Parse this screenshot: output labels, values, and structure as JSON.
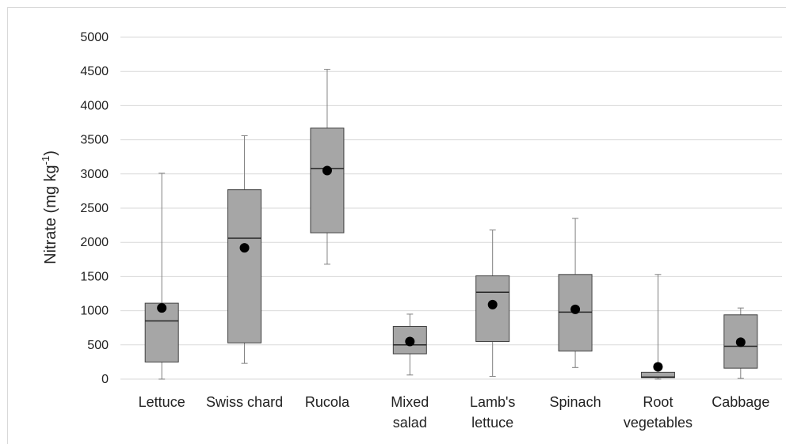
{
  "chart_data": {
    "type": "box",
    "ylabel": "Nitrate  (mg kg",
    "ylabel_sup": "-1",
    "ylabel_close": ")",
    "ylim": [
      0,
      5000
    ],
    "yticks": [
      0,
      500,
      1000,
      1500,
      2000,
      2500,
      3000,
      3500,
      4000,
      4500,
      5000
    ],
    "grid": true,
    "colors": {
      "box": "#a6a6a6",
      "stroke": "#404040",
      "whisker": "#7f7f7f",
      "mean": "#000000",
      "grid": "#d9d9d9"
    },
    "categories": [
      {
        "label": [
          "Lettuce"
        ],
        "min": 0,
        "q1": 250,
        "median": 850,
        "q3": 1110,
        "max": 3010,
        "mean": 1040
      },
      {
        "label": [
          "Swiss chard"
        ],
        "min": 230,
        "q1": 530,
        "median": 2060,
        "q3": 2770,
        "max": 3560,
        "mean": 1920
      },
      {
        "label": [
          "Rucola"
        ],
        "min": 1680,
        "q1": 2140,
        "median": 3080,
        "q3": 3670,
        "max": 4530,
        "mean": 3050
      },
      {
        "label": [
          "Mixed",
          "salad"
        ],
        "min": 60,
        "q1": 370,
        "median": 500,
        "q3": 770,
        "max": 950,
        "mean": 550
      },
      {
        "label": [
          "Lamb's",
          "lettuce"
        ],
        "min": 40,
        "q1": 550,
        "median": 1270,
        "q3": 1510,
        "max": 2180,
        "mean": 1090
      },
      {
        "label": [
          "Spinach"
        ],
        "min": 170,
        "q1": 410,
        "median": 980,
        "q3": 1530,
        "max": 2350,
        "mean": 1020
      },
      {
        "label": [
          "Root",
          "vegetables"
        ],
        "min": 0,
        "q1": 20,
        "median": 30,
        "q3": 100,
        "max": 1530,
        "mean": 180
      },
      {
        "label": [
          "Cabbage"
        ],
        "min": 10,
        "q1": 160,
        "median": 480,
        "q3": 940,
        "max": 1040,
        "mean": 540
      }
    ]
  }
}
